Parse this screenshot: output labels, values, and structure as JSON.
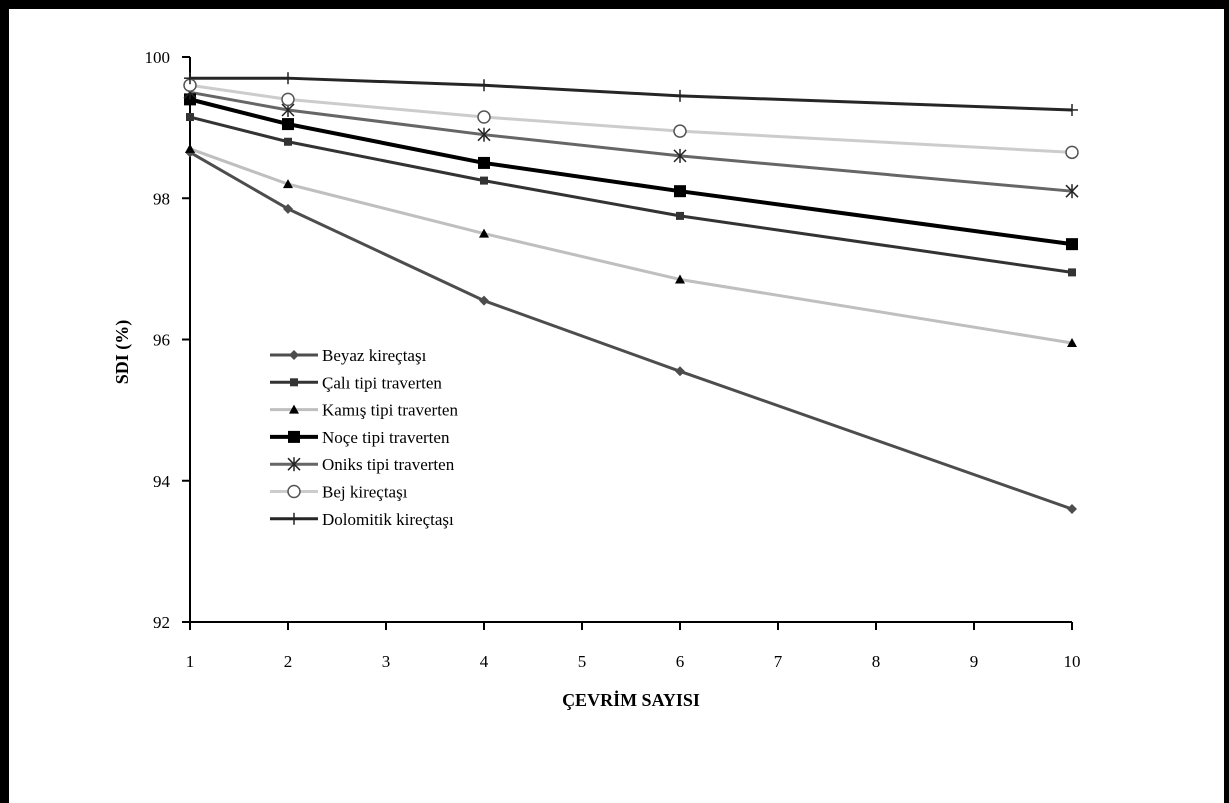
{
  "chart_data": {
    "type": "line",
    "xlabel": "ÇEVRİM SAYISI",
    "ylabel": "SDI (%)",
    "xlim": [
      1,
      10
    ],
    "ylim": [
      92,
      100
    ],
    "xticks": [
      1,
      2,
      3,
      4,
      5,
      6,
      7,
      8,
      9,
      10
    ],
    "yticks": [
      92,
      94,
      96,
      98,
      100
    ],
    "grid": false,
    "legend_position": "bottom-left",
    "x": [
      1,
      2,
      4,
      6,
      10
    ],
    "series": [
      {
        "name": "Beyaz kireçtaşı",
        "values": [
          98.65,
          97.85,
          96.55,
          95.55,
          93.6
        ],
        "color": "#4d4d4d",
        "marker": "diamond",
        "width": 3
      },
      {
        "name": "Çalı tipi traverten",
        "values": [
          99.15,
          98.8,
          98.25,
          97.75,
          96.95
        ],
        "color": "#333333",
        "marker": "square-small",
        "width": 3
      },
      {
        "name": "Kamış tipi traverten",
        "values": [
          98.7,
          98.2,
          97.5,
          96.85,
          95.95
        ],
        "color": "#bfbfbf",
        "marker": "triangle",
        "width": 3
      },
      {
        "name": "Noçe tipi traverten",
        "values": [
          99.4,
          99.05,
          98.5,
          98.1,
          97.35
        ],
        "color": "#000000",
        "marker": "square",
        "width": 4
      },
      {
        "name": "Oniks tipi traverten",
        "values": [
          99.5,
          99.25,
          98.9,
          98.6,
          98.1
        ],
        "color": "#666666",
        "marker": "asterisk",
        "width": 3
      },
      {
        "name": "Bej kireçtaşı",
        "values": [
          99.6,
          99.4,
          99.15,
          98.95,
          98.65
        ],
        "color": "#cccccc",
        "marker": "circle",
        "width": 3
      },
      {
        "name": "Dolomitik kireçtaşı",
        "values": [
          99.7,
          99.7,
          99.6,
          99.45,
          99.25
        ],
        "color": "#262626",
        "marker": "plus",
        "width": 3
      }
    ]
  }
}
